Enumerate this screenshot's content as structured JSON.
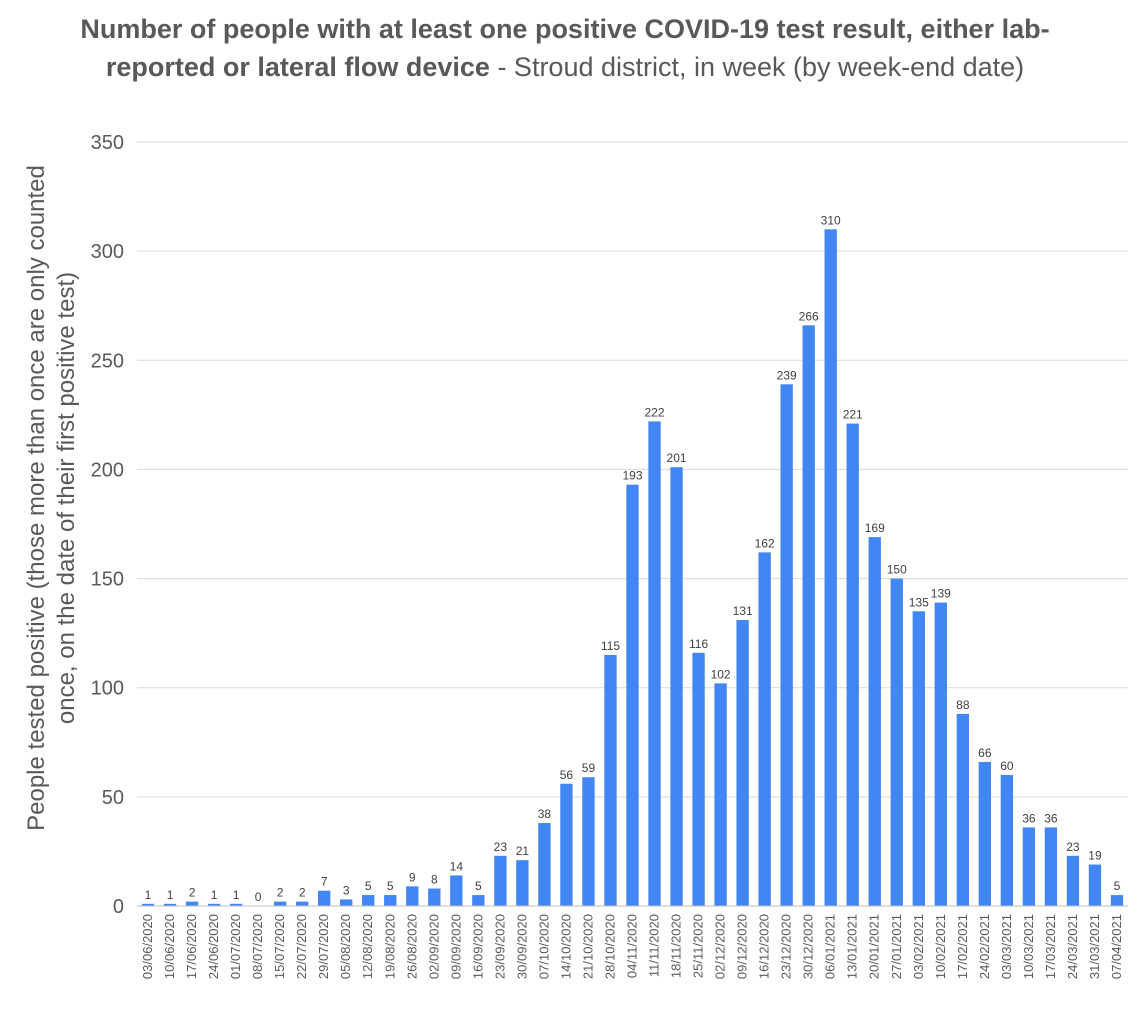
{
  "chart_data": {
    "type": "bar",
    "title_bold": "Number of people with at least one positive COVID-19 test result, either lab-reported or lateral flow device",
    "title_rest": " - Stroud district, in week (by week-end date)",
    "xlabel": "",
    "ylabel_line1": "People tested positive (those more than once are only counted",
    "ylabel_line2": "once, on the date of their first positive test)",
    "ylim": [
      0,
      350
    ],
    "yticks": [
      0,
      50,
      100,
      150,
      200,
      250,
      300,
      350
    ],
    "grid": true,
    "bar_color": "#4285F4",
    "categories": [
      "03/06/2020",
      "10/06/2020",
      "17/06/2020",
      "24/06/2020",
      "01/07/2020",
      "08/07/2020",
      "15/07/2020",
      "22/07/2020",
      "29/07/2020",
      "05/08/2020",
      "12/08/2020",
      "19/08/2020",
      "26/08/2020",
      "02/09/2020",
      "09/09/2020",
      "16/09/2020",
      "23/09/2020",
      "30/09/2020",
      "07/10/2020",
      "14/10/2020",
      "21/10/2020",
      "28/10/2020",
      "04/11/2020",
      "11/11/2020",
      "18/11/2020",
      "25/11/2020",
      "02/12/2020",
      "09/12/2020",
      "16/12/2020",
      "23/12/2020",
      "30/12/2020",
      "06/01/2021",
      "13/01/2021",
      "20/01/2021",
      "27/01/2021",
      "03/02/2021",
      "10/02/2021",
      "17/02/2021",
      "24/02/2021",
      "03/03/2021",
      "10/03/2021",
      "17/03/2021",
      "24/03/2021",
      "31/03/2021",
      "07/04/2021"
    ],
    "values": [
      1,
      1,
      2,
      1,
      1,
      0,
      2,
      2,
      7,
      3,
      5,
      5,
      9,
      8,
      14,
      5,
      23,
      21,
      38,
      56,
      59,
      115,
      193,
      222,
      201,
      116,
      102,
      131,
      162,
      239,
      266,
      310,
      221,
      169,
      150,
      135,
      139,
      88,
      66,
      60,
      36,
      36,
      23,
      19,
      5
    ]
  }
}
